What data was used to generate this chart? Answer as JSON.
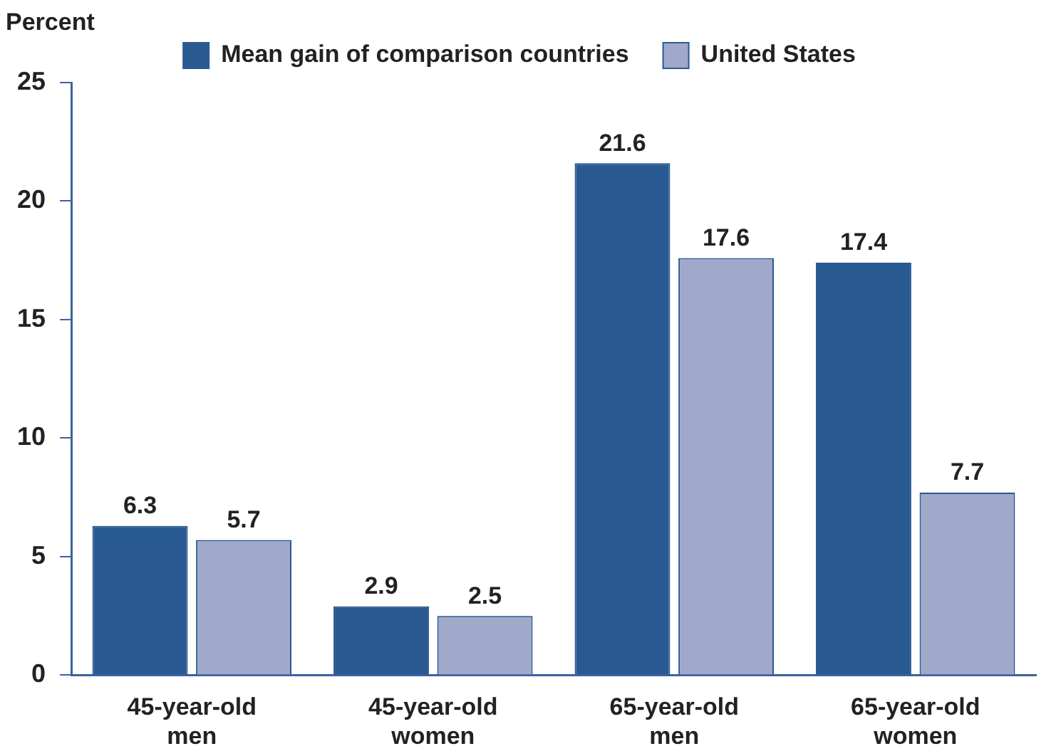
{
  "chart_data": {
    "type": "bar",
    "ylabel": "Percent",
    "categories": [
      "45-year-old men",
      "45-year-old women",
      "65-year-old men",
      "65-year-old women"
    ],
    "series": [
      {
        "name": "Mean gain of comparison countries",
        "color": "#285a91",
        "values": [
          6.3,
          2.9,
          21.6,
          17.4
        ]
      },
      {
        "name": "United States",
        "color": "#a0a9c9",
        "values": [
          5.7,
          2.5,
          17.6,
          7.7
        ]
      }
    ],
    "ylim": [
      0,
      25
    ],
    "yticks": [
      0,
      5,
      10,
      15,
      20,
      25
    ],
    "grid": false,
    "legend": "top",
    "data_labels": true
  }
}
